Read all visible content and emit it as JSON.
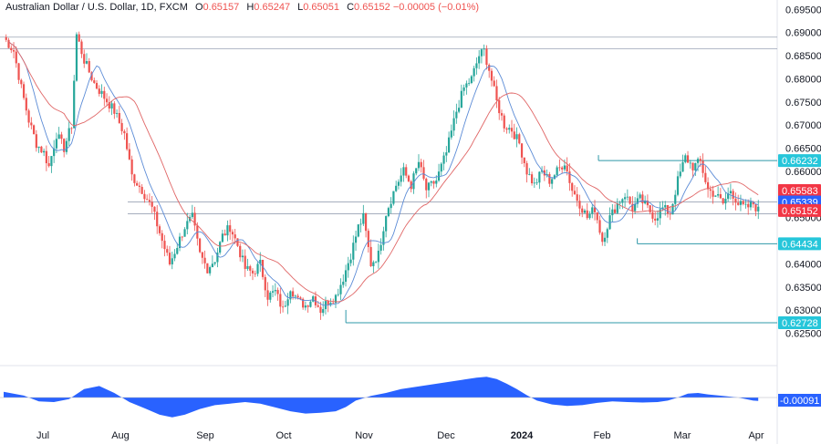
{
  "legend": {
    "symbol": "Australian Dollar / U.S. Dollar, 1D, FXCM",
    "o_label": "O",
    "o_value": "0.65157",
    "h_label": "H",
    "h_value": "0.65247",
    "l_label": "L",
    "l_value": "0.65051",
    "c_label": "C",
    "c_value": "0.65152",
    "change": "−0.00005 (−0.01%)"
  },
  "colors": {
    "up": "#26a69a",
    "down": "#ef5350",
    "ma_fast": "#5b8bd6",
    "ma_slow": "#e06666",
    "level_line": "#2f98a8",
    "oscillator": "#2962ff",
    "label_teal": "#26c6da",
    "label_red": "#f23645",
    "label_blue": "#2962ff"
  },
  "chart_data": {
    "type": "candlestick",
    "ylim": [
      0.62195,
      0.69525
    ],
    "y_ticks": [
      "0.69500",
      "0.69000",
      "0.68500",
      "0.68000",
      "0.67500",
      "0.67000",
      "0.66500",
      "0.66000",
      "0.65500",
      "0.65000",
      "0.64500",
      "0.64000",
      "0.63500",
      "0.63000",
      "0.62500"
    ],
    "x_ticks": [
      "Jul",
      "Aug",
      "Sep",
      "Oct",
      "Nov",
      "Dec",
      "2024",
      "Feb",
      "Mar",
      "Apr"
    ],
    "price_labels": [
      {
        "text": "0.66232",
        "value": 0.66232,
        "style": "teal"
      },
      {
        "text": "0.65583",
        "value": 0.65583,
        "style": "red"
      },
      {
        "text": "0.65339",
        "value": 0.65339,
        "style": "blue"
      },
      {
        "text": "0.65152",
        "value": 0.65152,
        "style": "red"
      },
      {
        "text": "0.64434",
        "value": 0.64434,
        "style": "teal"
      },
      {
        "text": "0.62728",
        "value": 0.62728,
        "style": "teal"
      }
    ],
    "horizontal_levels": [
      0.689,
      0.6865
    ],
    "support_band": [
      0.65339,
      0.6508
    ],
    "segments": [
      {
        "value": 0.66232,
        "from": 0.77,
        "to": 1.0
      },
      {
        "value": 0.64434,
        "from": 0.82,
        "to": 1.0
      },
      {
        "value": 0.62728,
        "from": 0.445,
        "to": 1.0
      }
    ],
    "price_path": [
      [
        0,
        0.689
      ],
      [
        4,
        0.686
      ],
      [
        7,
        0.678
      ],
      [
        10,
        0.671
      ],
      [
        13,
        0.666
      ],
      [
        16,
        0.664
      ],
      [
        18,
        0.661
      ],
      [
        21,
        0.668
      ],
      [
        24,
        0.665
      ],
      [
        27,
        0.67
      ],
      [
        29,
        0.6895
      ],
      [
        32,
        0.684
      ],
      [
        36,
        0.679
      ],
      [
        40,
        0.676
      ],
      [
        44,
        0.673
      ],
      [
        48,
        0.668
      ],
      [
        51,
        0.659
      ],
      [
        55,
        0.656
      ],
      [
        59,
        0.652
      ],
      [
        63,
        0.645
      ],
      [
        66,
        0.64
      ],
      [
        69,
        0.644
      ],
      [
        72,
        0.648
      ],
      [
        75,
        0.65
      ],
      [
        78,
        0.642
      ],
      [
        81,
        0.639
      ],
      [
        84,
        0.641
      ],
      [
        87,
        0.646
      ],
      [
        90,
        0.648
      ],
      [
        93,
        0.644
      ],
      [
        96,
        0.639
      ],
      [
        99,
        0.638
      ],
      [
        102,
        0.64
      ],
      [
        105,
        0.633
      ],
      [
        108,
        0.634
      ],
      [
        111,
        0.63
      ],
      [
        114,
        0.635
      ],
      [
        117,
        0.632
      ],
      [
        120,
        0.631
      ],
      [
        123,
        0.633
      ],
      [
        126,
        0.63
      ],
      [
        129,
        0.632
      ],
      [
        132,
        0.633
      ],
      [
        135,
        0.637
      ],
      [
        138,
        0.642
      ],
      [
        141,
        0.648
      ],
      [
        143,
        0.65
      ],
      [
        146,
        0.64
      ],
      [
        149,
        0.642
      ],
      [
        152,
        0.651
      ],
      [
        156,
        0.657
      ],
      [
        159,
        0.66
      ],
      [
        162,
        0.657
      ],
      [
        165,
        0.662
      ],
      [
        168,
        0.656
      ],
      [
        172,
        0.658
      ],
      [
        176,
        0.664
      ],
      [
        180,
        0.673
      ],
      [
        183,
        0.678
      ],
      [
        186,
        0.68
      ],
      [
        189,
        0.685
      ],
      [
        191,
        0.686
      ],
      [
        193,
        0.682
      ],
      [
        196,
        0.675
      ],
      [
        199,
        0.67
      ],
      [
        202,
        0.669
      ],
      [
        205,
        0.666
      ],
      [
        208,
        0.66
      ],
      [
        211,
        0.657
      ],
      [
        214,
        0.66
      ],
      [
        217,
        0.658
      ],
      [
        220,
        0.66
      ],
      [
        223,
        0.662
      ],
      [
        226,
        0.656
      ],
      [
        229,
        0.653
      ],
      [
        232,
        0.65
      ],
      [
        235,
        0.652
      ],
      [
        238,
        0.645
      ],
      [
        241,
        0.65
      ],
      [
        244,
        0.653
      ],
      [
        247,
        0.655
      ],
      [
        250,
        0.652
      ],
      [
        253,
        0.654
      ],
      [
        256,
        0.652
      ],
      [
        259,
        0.65
      ],
      [
        262,
        0.652
      ],
      [
        265,
        0.651
      ],
      [
        268,
        0.658
      ],
      [
        271,
        0.663
      ],
      [
        274,
        0.661
      ],
      [
        277,
        0.662
      ],
      [
        280,
        0.656
      ],
      [
        283,
        0.655
      ],
      [
        286,
        0.653
      ],
      [
        289,
        0.656
      ],
      [
        292,
        0.653
      ],
      [
        295,
        0.652
      ],
      [
        298,
        0.653
      ],
      [
        300,
        0.6515
      ]
    ],
    "oscillator": {
      "last_label": "-0.00091",
      "path": [
        [
          0,
          0.0015
        ],
        [
          8,
          0.0005
        ],
        [
          14,
          -0.001
        ],
        [
          20,
          -0.0012
        ],
        [
          26,
          -0.0004
        ],
        [
          32,
          0.0022
        ],
        [
          38,
          0.003
        ],
        [
          44,
          0.0012
        ],
        [
          50,
          -0.0012
        ],
        [
          56,
          -0.0028
        ],
        [
          62,
          -0.0045
        ],
        [
          67,
          -0.0052
        ],
        [
          72,
          -0.0045
        ],
        [
          78,
          -0.003
        ],
        [
          84,
          -0.002
        ],
        [
          90,
          -0.0016
        ],
        [
          96,
          -0.0012
        ],
        [
          102,
          -0.0016
        ],
        [
          108,
          -0.0026
        ],
        [
          114,
          -0.0036
        ],
        [
          120,
          -0.0042
        ],
        [
          126,
          -0.004
        ],
        [
          132,
          -0.0036
        ],
        [
          136,
          -0.0025
        ],
        [
          140,
          -0.0008
        ],
        [
          146,
          0.0004
        ],
        [
          152,
          0.0012
        ],
        [
          158,
          0.0022
        ],
        [
          164,
          0.0028
        ],
        [
          170,
          0.0034
        ],
        [
          176,
          0.004
        ],
        [
          182,
          0.0046
        ],
        [
          188,
          0.0052
        ],
        [
          192,
          0.0054
        ],
        [
          196,
          0.0048
        ],
        [
          200,
          0.0036
        ],
        [
          204,
          0.0022
        ],
        [
          208,
          0.0006
        ],
        [
          212,
          -0.0008
        ],
        [
          218,
          -0.0018
        ],
        [
          224,
          -0.0022
        ],
        [
          230,
          -0.002
        ],
        [
          236,
          -0.0014
        ],
        [
          242,
          -0.001
        ],
        [
          248,
          -0.0012
        ],
        [
          254,
          -0.0013
        ],
        [
          260,
          -0.0012
        ],
        [
          264,
          -0.0008
        ],
        [
          268,
          0.0
        ],
        [
          272,
          0.001
        ],
        [
          276,
          0.0012
        ],
        [
          280,
          0.0008
        ],
        [
          286,
          0.0004
        ],
        [
          292,
          0.0
        ],
        [
          298,
          -0.0008
        ],
        [
          300,
          -0.0009
        ]
      ]
    }
  }
}
